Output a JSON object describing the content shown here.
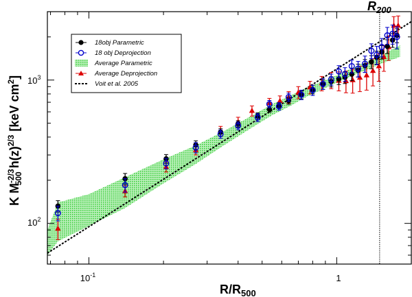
{
  "chart_data": {
    "type": "scatter",
    "title": "",
    "x_scale": "log",
    "y_scale": "log",
    "xlim": [
      0.068,
      2.0
    ],
    "ylim": [
      52,
      3000
    ],
    "xlabel": {
      "main": "R/R",
      "sub": "500"
    },
    "ylabel": {
      "k": "K",
      "m": "M",
      "m_sub": "500",
      "m_sup": "-2/3",
      "h": "h(z)",
      "h_sup": "2/3",
      "unit_open": "[keV cm",
      "unit_sup": "2",
      "unit_close": "]"
    },
    "x_ticks": [
      {
        "value": 0.1,
        "main": "10",
        "sup": "-1"
      },
      {
        "value": 1,
        "main": "1",
        "sup": ""
      }
    ],
    "y_ticks": [
      {
        "value": 100,
        "main": "10",
        "sup": "2"
      },
      {
        "value": 1000,
        "main": "10",
        "sup": "3"
      }
    ],
    "r200": {
      "x": 1.49,
      "label": "R",
      "sub": "200"
    },
    "legend": [
      {
        "key": "param",
        "label": "18obj Parametric"
      },
      {
        "key": "deproj",
        "label": "18 obj Deprojection"
      },
      {
        "key": "band",
        "label": "Average Parametric"
      },
      {
        "key": "avg_deproj",
        "label": "Average Deprojection"
      },
      {
        "key": "voit",
        "label": "Voit et al. 2005"
      }
    ],
    "colors": {
      "param": "#000000",
      "deproj": "#0000cc",
      "band": "#33cc33",
      "avg_deproj": "#dd0000",
      "voit": "#000000"
    },
    "voit": {
      "x0": 0.068,
      "y0": 62,
      "slope": 1.1
    },
    "band": {
      "x": [
        0.068,
        0.075,
        0.1,
        0.14,
        0.2,
        0.27,
        0.35,
        0.45,
        0.55,
        0.65,
        0.75,
        0.9,
        1.0,
        1.2,
        1.4,
        1.6,
        1.8
      ],
      "lower": [
        60,
        75,
        96,
        128,
        190,
        260,
        350,
        460,
        570,
        660,
        760,
        880,
        960,
        1100,
        1230,
        1350,
        1450
      ],
      "upper": [
        90,
        140,
        160,
        210,
        280,
        350,
        440,
        560,
        680,
        780,
        880,
        1000,
        1080,
        1250,
        1400,
        1570,
        1750
      ]
    },
    "series": [
      {
        "key": "param",
        "name": "18obj Parametric",
        "x": [
          0.075,
          0.14,
          0.205,
          0.27,
          0.34,
          0.4,
          0.48,
          0.535,
          0.585,
          0.64,
          0.72,
          0.8,
          0.88,
          0.95,
          1.02,
          1.08,
          1.15,
          1.22,
          1.3,
          1.38,
          1.45,
          1.52,
          1.6,
          1.68,
          1.75
        ],
        "y": [
          132,
          205,
          282,
          352,
          432,
          495,
          560,
          625,
          665,
          718,
          788,
          860,
          930,
          975,
          1020,
          1045,
          1100,
          1170,
          1260,
          1340,
          1440,
          1570,
          1720,
          1900,
          2050
        ],
        "err": [
          12,
          18,
          20,
          25,
          25,
          25,
          30,
          30,
          30,
          40,
          50,
          60,
          70,
          80,
          90,
          100,
          110,
          120,
          130,
          140,
          150,
          170,
          190,
          210,
          230
        ]
      },
      {
        "key": "deproj",
        "name": "18 obj Deprojection",
        "x": [
          0.075,
          0.14,
          0.205,
          0.27,
          0.34,
          0.4,
          0.48,
          0.535,
          0.585,
          0.64,
          0.72,
          0.8,
          0.88,
          0.95,
          1.02,
          1.08,
          1.15,
          1.22,
          1.3,
          1.38,
          1.45,
          1.52,
          1.6,
          1.68,
          1.75
        ],
        "y": [
          118,
          185,
          262,
          338,
          420,
          480,
          548,
          680,
          655,
          760,
          790,
          850,
          940,
          1010,
          1150,
          1100,
          1250,
          1200,
          1300,
          1600,
          1500,
          1700,
          2050,
          2100,
          2000
        ],
        "err": [
          14,
          20,
          22,
          28,
          28,
          30,
          35,
          40,
          40,
          50,
          60,
          70,
          80,
          90,
          110,
          120,
          130,
          150,
          170,
          190,
          220,
          250,
          280,
          320,
          350
        ]
      },
      {
        "key": "avg_deproj",
        "name": "Average Deprojection",
        "x": [
          0.075,
          0.14,
          0.205,
          0.27,
          0.34,
          0.4,
          0.455,
          0.535,
          0.59,
          0.64,
          0.7,
          0.78,
          0.87,
          0.95,
          1.02,
          1.09,
          1.16,
          1.24,
          1.32,
          1.4,
          1.48,
          1.55,
          1.62,
          1.7,
          1.77
        ],
        "y": [
          92,
          168,
          248,
          325,
          440,
          510,
          610,
          690,
          715,
          760,
          820,
          890,
          950,
          1000,
          990,
          985,
          1000,
          1040,
          1080,
          1160,
          1250,
          1450,
          1700,
          2400,
          2400
        ],
        "err": [
          15,
          15,
          20,
          25,
          35,
          40,
          50,
          55,
          60,
          70,
          80,
          90,
          110,
          130,
          150,
          170,
          190,
          210,
          230,
          250,
          270,
          300,
          330,
          370,
          400
        ]
      }
    ]
  }
}
